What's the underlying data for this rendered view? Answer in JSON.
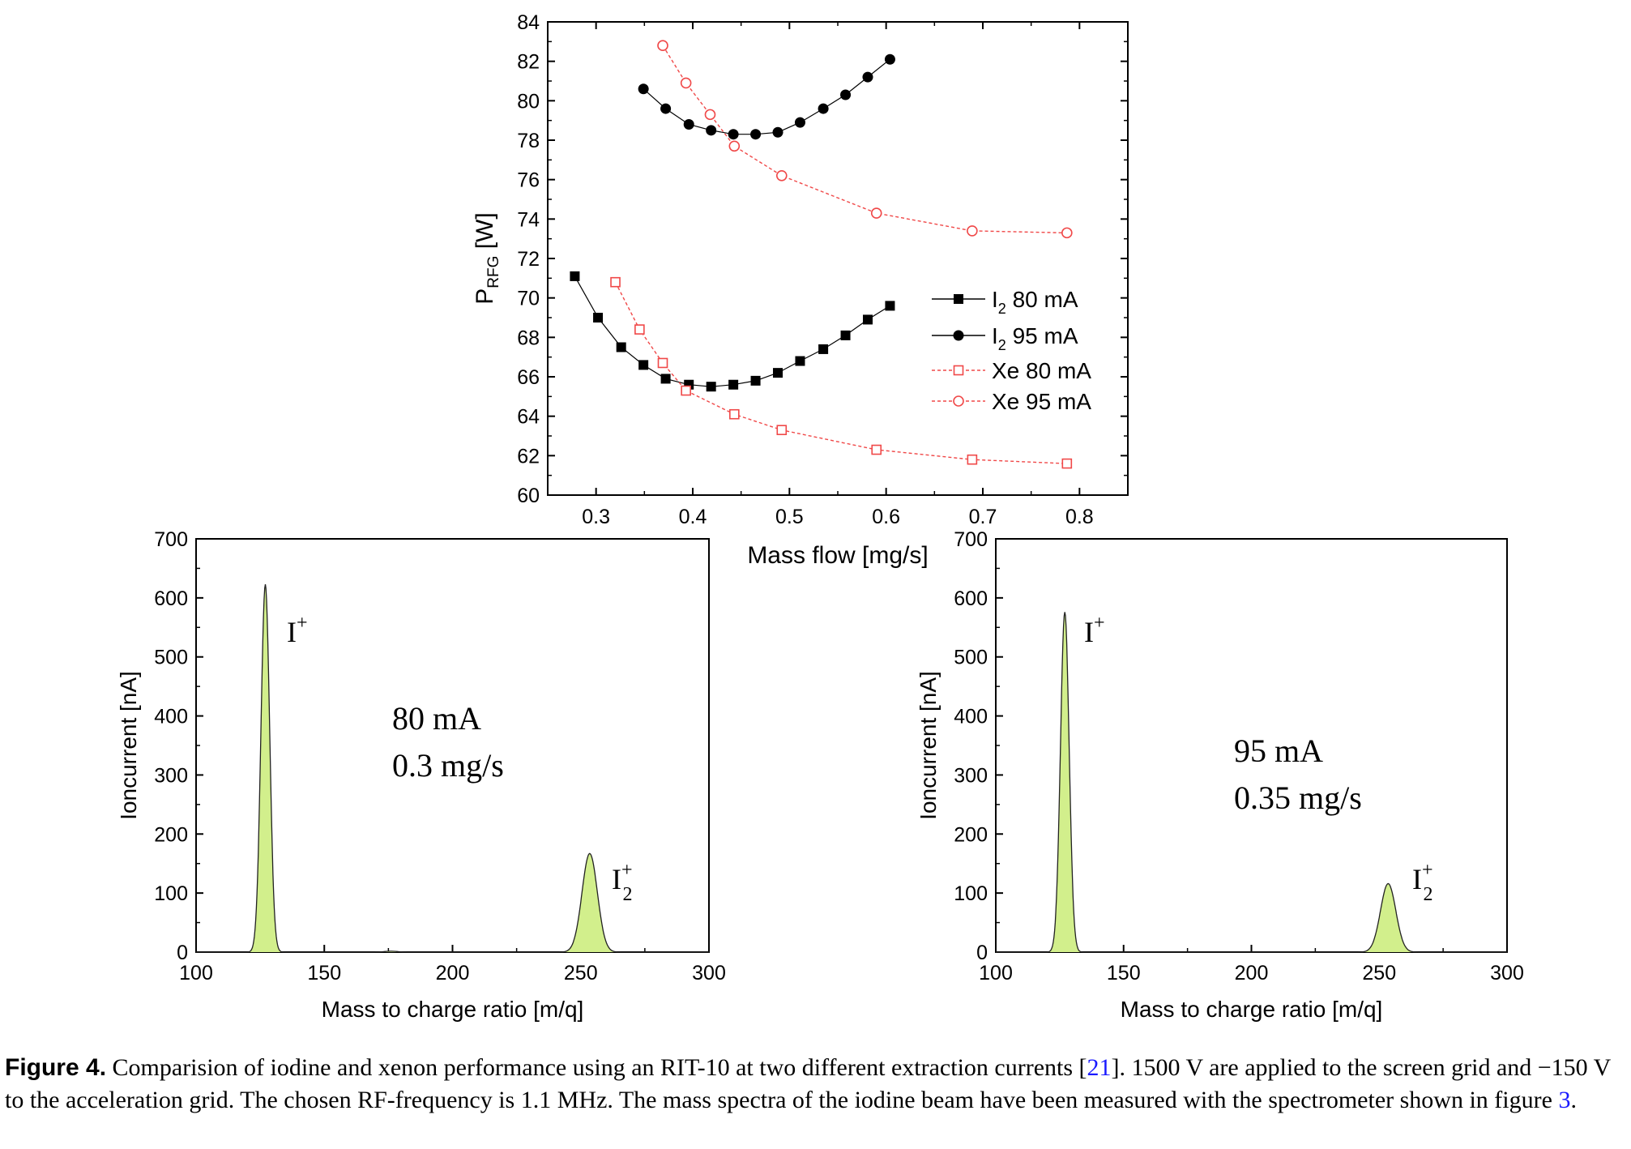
{
  "chart_data": [
    {
      "type": "line",
      "ylabel_main": "P",
      "ylabel_sub": "RFG",
      "ylabel_unit": " [W]",
      "xlabel": "Mass flow [mg/s]",
      "xlim": [
        0.25,
        0.85
      ],
      "ylim": [
        60,
        84
      ],
      "xticks": [
        "0.3",
        "0.4",
        "0.5",
        "0.6",
        "0.7",
        "0.8"
      ],
      "yticks": [
        "60",
        "62",
        "64",
        "66",
        "68",
        "70",
        "72",
        "74",
        "76",
        "78",
        "80",
        "82",
        "84"
      ],
      "legend_position": "middle-right",
      "series": [
        {
          "name_main": "I",
          "name_sub": "2",
          "name_rest": "   80 mA",
          "marker": "filled-square",
          "color": "#000000",
          "line": "solid",
          "x": [
            0.278,
            0.302,
            0.326,
            0.349,
            0.372,
            0.396,
            0.419,
            0.442,
            0.465,
            0.488,
            0.511,
            0.535,
            0.558,
            0.581,
            0.604
          ],
          "y": [
            71.1,
            69.0,
            67.5,
            66.6,
            65.9,
            65.6,
            65.5,
            65.6,
            65.8,
            66.2,
            66.8,
            67.4,
            68.1,
            68.9,
            69.6
          ]
        },
        {
          "name_main": "I",
          "name_sub": "2",
          "name_rest": "   95 mA",
          "marker": "filled-circle",
          "color": "#000000",
          "line": "solid",
          "x": [
            0.349,
            0.372,
            0.396,
            0.419,
            0.442,
            0.465,
            0.488,
            0.511,
            0.535,
            0.558,
            0.581,
            0.604
          ],
          "y": [
            80.6,
            79.6,
            78.8,
            78.5,
            78.3,
            78.3,
            78.4,
            78.9,
            79.6,
            80.3,
            81.2,
            82.1
          ]
        },
        {
          "name_main": "Xe 80 mA",
          "name_sub": "",
          "name_rest": "",
          "marker": "open-square",
          "color": "#f04848",
          "line": "dashed",
          "x": [
            0.32,
            0.345,
            0.369,
            0.393,
            0.443,
            0.492,
            0.59,
            0.689,
            0.787
          ],
          "y": [
            70.8,
            68.4,
            66.7,
            65.3,
            64.1,
            63.3,
            62.3,
            61.8,
            61.6
          ]
        },
        {
          "name_main": "Xe 95 mA",
          "name_sub": "",
          "name_rest": "",
          "marker": "open-circle",
          "color": "#f04848",
          "line": "dashed",
          "x": [
            0.369,
            0.393,
            0.418,
            0.443,
            0.492,
            0.59,
            0.689,
            0.787
          ],
          "y": [
            82.8,
            80.9,
            79.3,
            77.7,
            76.2,
            74.3,
            73.4,
            73.3
          ]
        }
      ]
    },
    {
      "type": "area",
      "xlabel": "Mass to charge ratio [m/q]",
      "ylabel": "Ioncurrent [nA]",
      "xlim": [
        100,
        300
      ],
      "ylim": [
        0,
        700
      ],
      "xticks": [
        "100",
        "150",
        "200",
        "250",
        "300"
      ],
      "yticks": [
        "0",
        "100",
        "200",
        "300",
        "400",
        "500",
        "600",
        "700"
      ],
      "fill_color": "#d2ef8c",
      "line_color": "#222222",
      "annotation_lines": [
        "80 mA",
        "0.3 mg/s"
      ],
      "peak_label_1": "I",
      "peak_label_2": "I",
      "peak_label_2_sub": "2",
      "peak_label_sup": "+",
      "peaks": [
        {
          "center": 127,
          "height": 623,
          "width": 1.7
        },
        {
          "center": 253.5,
          "height": 167,
          "width": 3.0
        },
        {
          "center": 176,
          "height": 1.5,
          "width": 2.5
        }
      ]
    },
    {
      "type": "area",
      "xlabel": "Mass to charge ratio [m/q]",
      "ylabel": "Ioncurrent [nA]",
      "xlim": [
        100,
        300
      ],
      "ylim": [
        0,
        700
      ],
      "xticks": [
        "100",
        "150",
        "200",
        "250",
        "300"
      ],
      "yticks": [
        "0",
        "100",
        "200",
        "300",
        "400",
        "500",
        "600",
        "700"
      ],
      "fill_color": "#d2ef8c",
      "line_color": "#222222",
      "annotation_lines": [
        "95 mA",
        "0.35 mg/s"
      ],
      "peak_label_1": "I",
      "peak_label_2": "I",
      "peak_label_2_sub": "2",
      "peak_label_sup": "+",
      "peaks": [
        {
          "center": 127,
          "height": 576,
          "width": 1.7
        },
        {
          "center": 253.5,
          "height": 116,
          "width": 3.0
        }
      ]
    }
  ],
  "caption": {
    "label": "Figure 4.",
    "text_1": " Comparision of iodine and xenon performance using an RIT-10 at two different extraction currents [",
    "ref_1": "21",
    "text_2": "]. 1500 V are applied to the screen grid and −150 V to the acceleration grid. The chosen RF-frequency is 1.1 MHz. The mass spectra of the iodine beam have been measured with the spectrometer shown in figure ",
    "ref_2": "3",
    "text_3": "."
  }
}
